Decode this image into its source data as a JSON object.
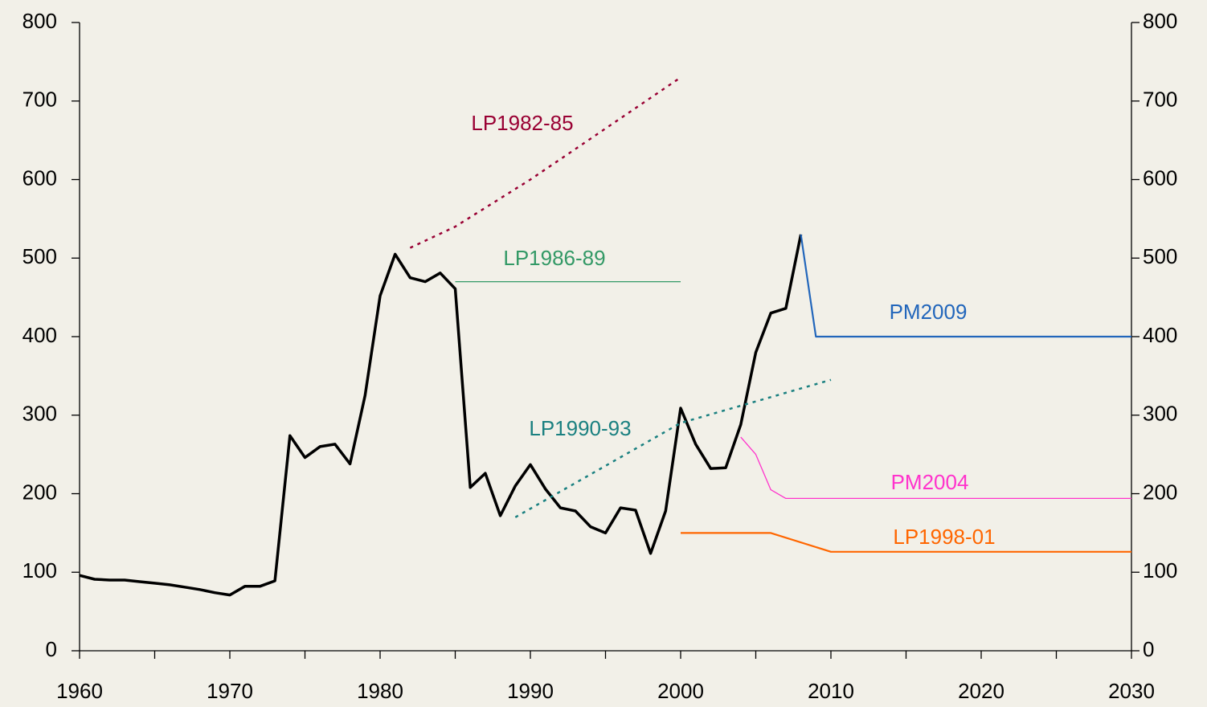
{
  "chart_data": {
    "type": "line",
    "xlim": [
      1960,
      2030
    ],
    "xticks": [
      1960,
      1970,
      1980,
      1990,
      2000,
      2010,
      2020,
      2030
    ],
    "xticks_minor": [
      1965,
      1975,
      1985,
      1995,
      2005,
      2015,
      2025
    ],
    "ylim": [
      0,
      800
    ],
    "yticks": [
      0,
      100,
      200,
      300,
      400,
      500,
      600,
      700,
      800
    ],
    "y2lim": [
      0,
      800
    ],
    "y2ticks": [
      0,
      100,
      200,
      300,
      400,
      500,
      600,
      700,
      800
    ],
    "series": [
      {
        "color": "#000000",
        "style": "solid",
        "x": [
          1960,
          1961,
          1962,
          1963,
          1964,
          1965,
          1966,
          1967,
          1968,
          1969,
          1970,
          1971,
          1972,
          1973,
          1974,
          1975,
          1976,
          1977,
          1978,
          1979,
          1980,
          1981,
          1982,
          1983,
          1984,
          1985,
          1986,
          1987,
          1988,
          1989,
          1990,
          1991,
          1992,
          1993,
          1994,
          1995,
          1996,
          1997,
          1998,
          1999,
          2000,
          2001,
          2002,
          2003,
          2004,
          2005,
          2006,
          2007,
          2008
        ],
        "values": [
          96,
          91,
          90,
          90,
          88,
          86,
          84,
          81,
          78,
          74,
          71,
          82,
          82,
          89,
          274,
          246,
          260,
          263,
          238,
          325,
          452,
          505,
          475,
          470,
          481,
          461,
          208,
          226,
          172,
          210,
          237,
          206,
          182,
          178,
          158,
          150,
          182,
          179,
          124,
          178,
          309,
          263,
          232,
          233,
          288,
          380,
          430,
          436,
          530
        ]
      },
      {
        "name": "LP1982-85",
        "color": "#990033",
        "style": "dotted",
        "x": [
          1982,
          1985,
          1990,
          1995,
          2000
        ],
        "values": [
          513,
          540,
          600,
          665,
          730
        ]
      },
      {
        "name": "LP1986-89",
        "color": "#339966",
        "style": "solid",
        "x": [
          1985,
          2000
        ],
        "values": [
          470,
          470
        ]
      },
      {
        "name": "LP1990-93",
        "color": "#1a8080",
        "style": "dotted",
        "x": [
          1989,
          2000,
          2010
        ],
        "values": [
          170,
          290,
          345
        ]
      },
      {
        "name": "PM2009",
        "color": "#2266bb",
        "style": "solid",
        "x": [
          2008,
          2009,
          2030
        ],
        "values": [
          530,
          400,
          400
        ]
      },
      {
        "name": "PM2004",
        "color": "#ff33cc",
        "style": "solid",
        "x": [
          2004,
          2005,
          2006,
          2007,
          2030
        ],
        "values": [
          272,
          250,
          205,
          194,
          194
        ]
      },
      {
        "name": "LP1998-01",
        "color": "#ff6600",
        "style": "solid",
        "x": [
          2000,
          2006,
          2010,
          2030
        ],
        "values": [
          150,
          150,
          126,
          126
        ]
      }
    ]
  }
}
